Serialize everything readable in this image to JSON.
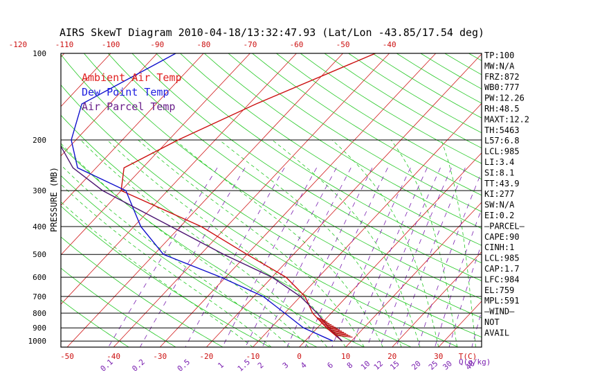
{
  "chart_data": {
    "type": "skew-t",
    "title": "AIRS SkewT Diagram 2010-04-18/13:32:47.93 (Lat/Lon -43.85/17.54 deg)",
    "ylabel": "PRESSURE (MB)",
    "pressure_ticks": [
      "100",
      "200",
      "300",
      "400",
      "500",
      "600",
      "700",
      "800",
      "900",
      "1000"
    ],
    "bottom_temp_ticks": [
      "-50",
      "-40",
      "-30",
      "-20",
      "-10",
      "0",
      "10",
      "20",
      "30"
    ],
    "top_temp_ticks": [
      "-120",
      "-110",
      "-100",
      "-90",
      "-80",
      "-70",
      "-60",
      "-50",
      "-40"
    ],
    "tc_label": "T(C)",
    "mixing_ratio_labels": [
      "0.1",
      "0.2",
      "0.5",
      "1",
      "1.5",
      "2",
      "3",
      "4",
      "6",
      "8",
      "10",
      "12",
      "15",
      "20",
      "25",
      "30",
      "40"
    ],
    "mixing_ratio_unit": "Q(g/kg)",
    "legend": [
      {
        "name": "Ambient Air Temp",
        "color": "#e02020"
      },
      {
        "name": "Dew Point Temp",
        "color": "#2020e0"
      },
      {
        "name": "Air Parcel Temp",
        "color": "#6a1f8a"
      }
    ],
    "series": [
      {
        "name": "Ambient Air Temp",
        "color": "#cc1010",
        "points": [
          [
            100,
            -43
          ],
          [
            150,
            -58.5
          ],
          [
            200,
            -68
          ],
          [
            250,
            -74
          ],
          [
            300,
            -70
          ],
          [
            400,
            -45.5
          ],
          [
            500,
            -30
          ],
          [
            600,
            -17
          ],
          [
            700,
            -9
          ],
          [
            800,
            -4
          ],
          [
            900,
            2
          ],
          [
            1000,
            8
          ]
        ]
      },
      {
        "name": "Dew Point Temp",
        "color": "#1010cc",
        "points": [
          [
            100,
            -86
          ],
          [
            150,
            -96
          ],
          [
            200,
            -91
          ],
          [
            250,
            -84
          ],
          [
            300,
            -69
          ],
          [
            400,
            -58.5
          ],
          [
            500,
            -48
          ],
          [
            600,
            -31
          ],
          [
            700,
            -18
          ],
          [
            800,
            -10
          ],
          [
            900,
            -3
          ],
          [
            1000,
            6
          ]
        ]
      },
      {
        "name": "Air Parcel Temp",
        "color": "#4a1470",
        "points": [
          [
            100,
            -121
          ],
          [
            150,
            -106
          ],
          [
            200,
            -94
          ],
          [
            250,
            -85
          ],
          [
            300,
            -74
          ],
          [
            400,
            -52
          ],
          [
            500,
            -35
          ],
          [
            600,
            -20
          ],
          [
            700,
            -10
          ],
          [
            800,
            -3
          ],
          [
            900,
            2.5
          ],
          [
            1000,
            8
          ]
        ]
      }
    ],
    "wind_barb_range_mb": [
      830,
      960
    ],
    "grid": true
  },
  "indices": [
    "TP:100",
    "MW:N/A",
    "FRZ:872",
    "WB0:777",
    "PW:12.26",
    "RH:48.5",
    "MAXT:12.2",
    "TH:5463",
    "L57:6.8",
    "LCL:985",
    "LI:3.4",
    "SI:8.1",
    "TT:43.9",
    "KI:277",
    "SW:N/A",
    "EI:0.2",
    "—PARCEL—",
    "CAPE:90",
    "CINH:1",
    "LCL:985",
    "CAP:1.7",
    "LFC:984",
    "EL:759",
    "MPL:591",
    "—WIND—",
    "NOT",
    "AVAIL"
  ],
  "colors": {
    "isotherm": "#d01818",
    "dry_adiabat": "#22c822",
    "moist_adiabat": "#22c822",
    "mixing_ratio": "#7a1fb0",
    "isobar": "#000000"
  }
}
